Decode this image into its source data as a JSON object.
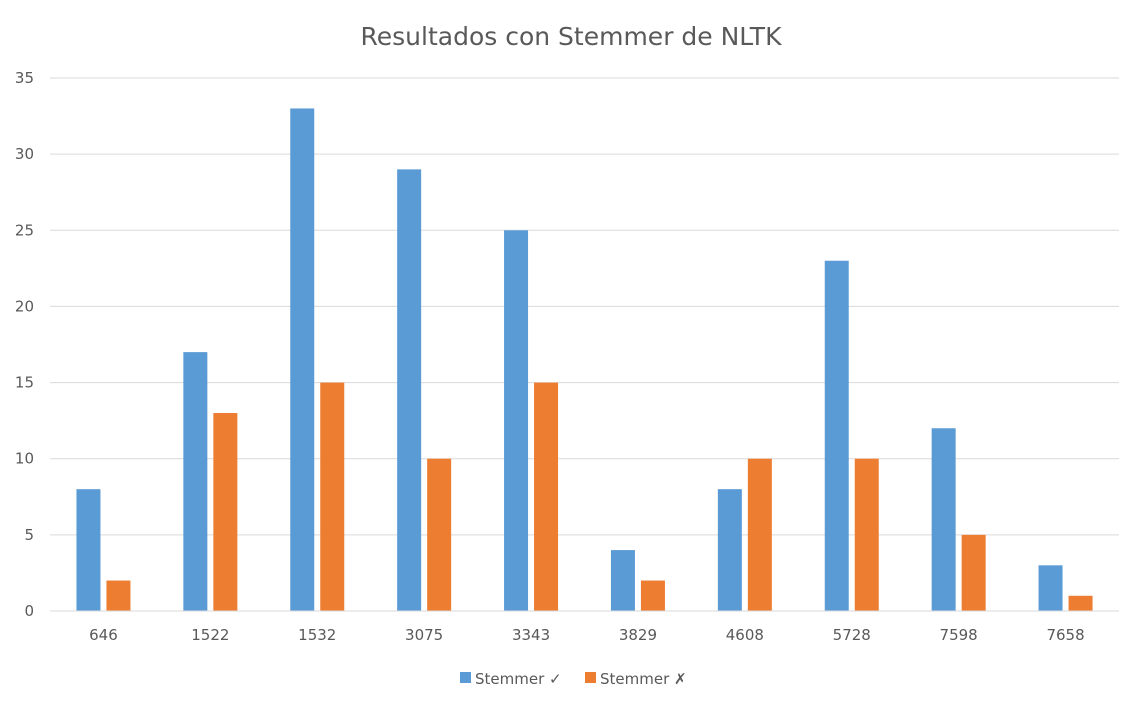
{
  "chart_data": {
    "type": "bar",
    "title": "Resultados con Stemmer de NLTK",
    "xlabel": "",
    "ylabel": "",
    "categories": [
      "646",
      "1522",
      "1532",
      "3075",
      "3343",
      "3829",
      "4608",
      "5728",
      "7598",
      "7658"
    ],
    "series": [
      {
        "name": "Stemmer ✓",
        "color": "#5b9bd5",
        "values": [
          8,
          17,
          33,
          29,
          25,
          4,
          8,
          23,
          12,
          3
        ]
      },
      {
        "name": "Stemmer ✗",
        "color": "#ed7d31",
        "values": [
          2,
          13,
          15,
          10,
          15,
          2,
          10,
          10,
          5,
          1
        ]
      }
    ],
    "ylim": [
      0,
      35
    ],
    "yticks": [
      0,
      5,
      10,
      15,
      20,
      25,
      30,
      35
    ],
    "grid": true,
    "legend_position": "bottom"
  }
}
